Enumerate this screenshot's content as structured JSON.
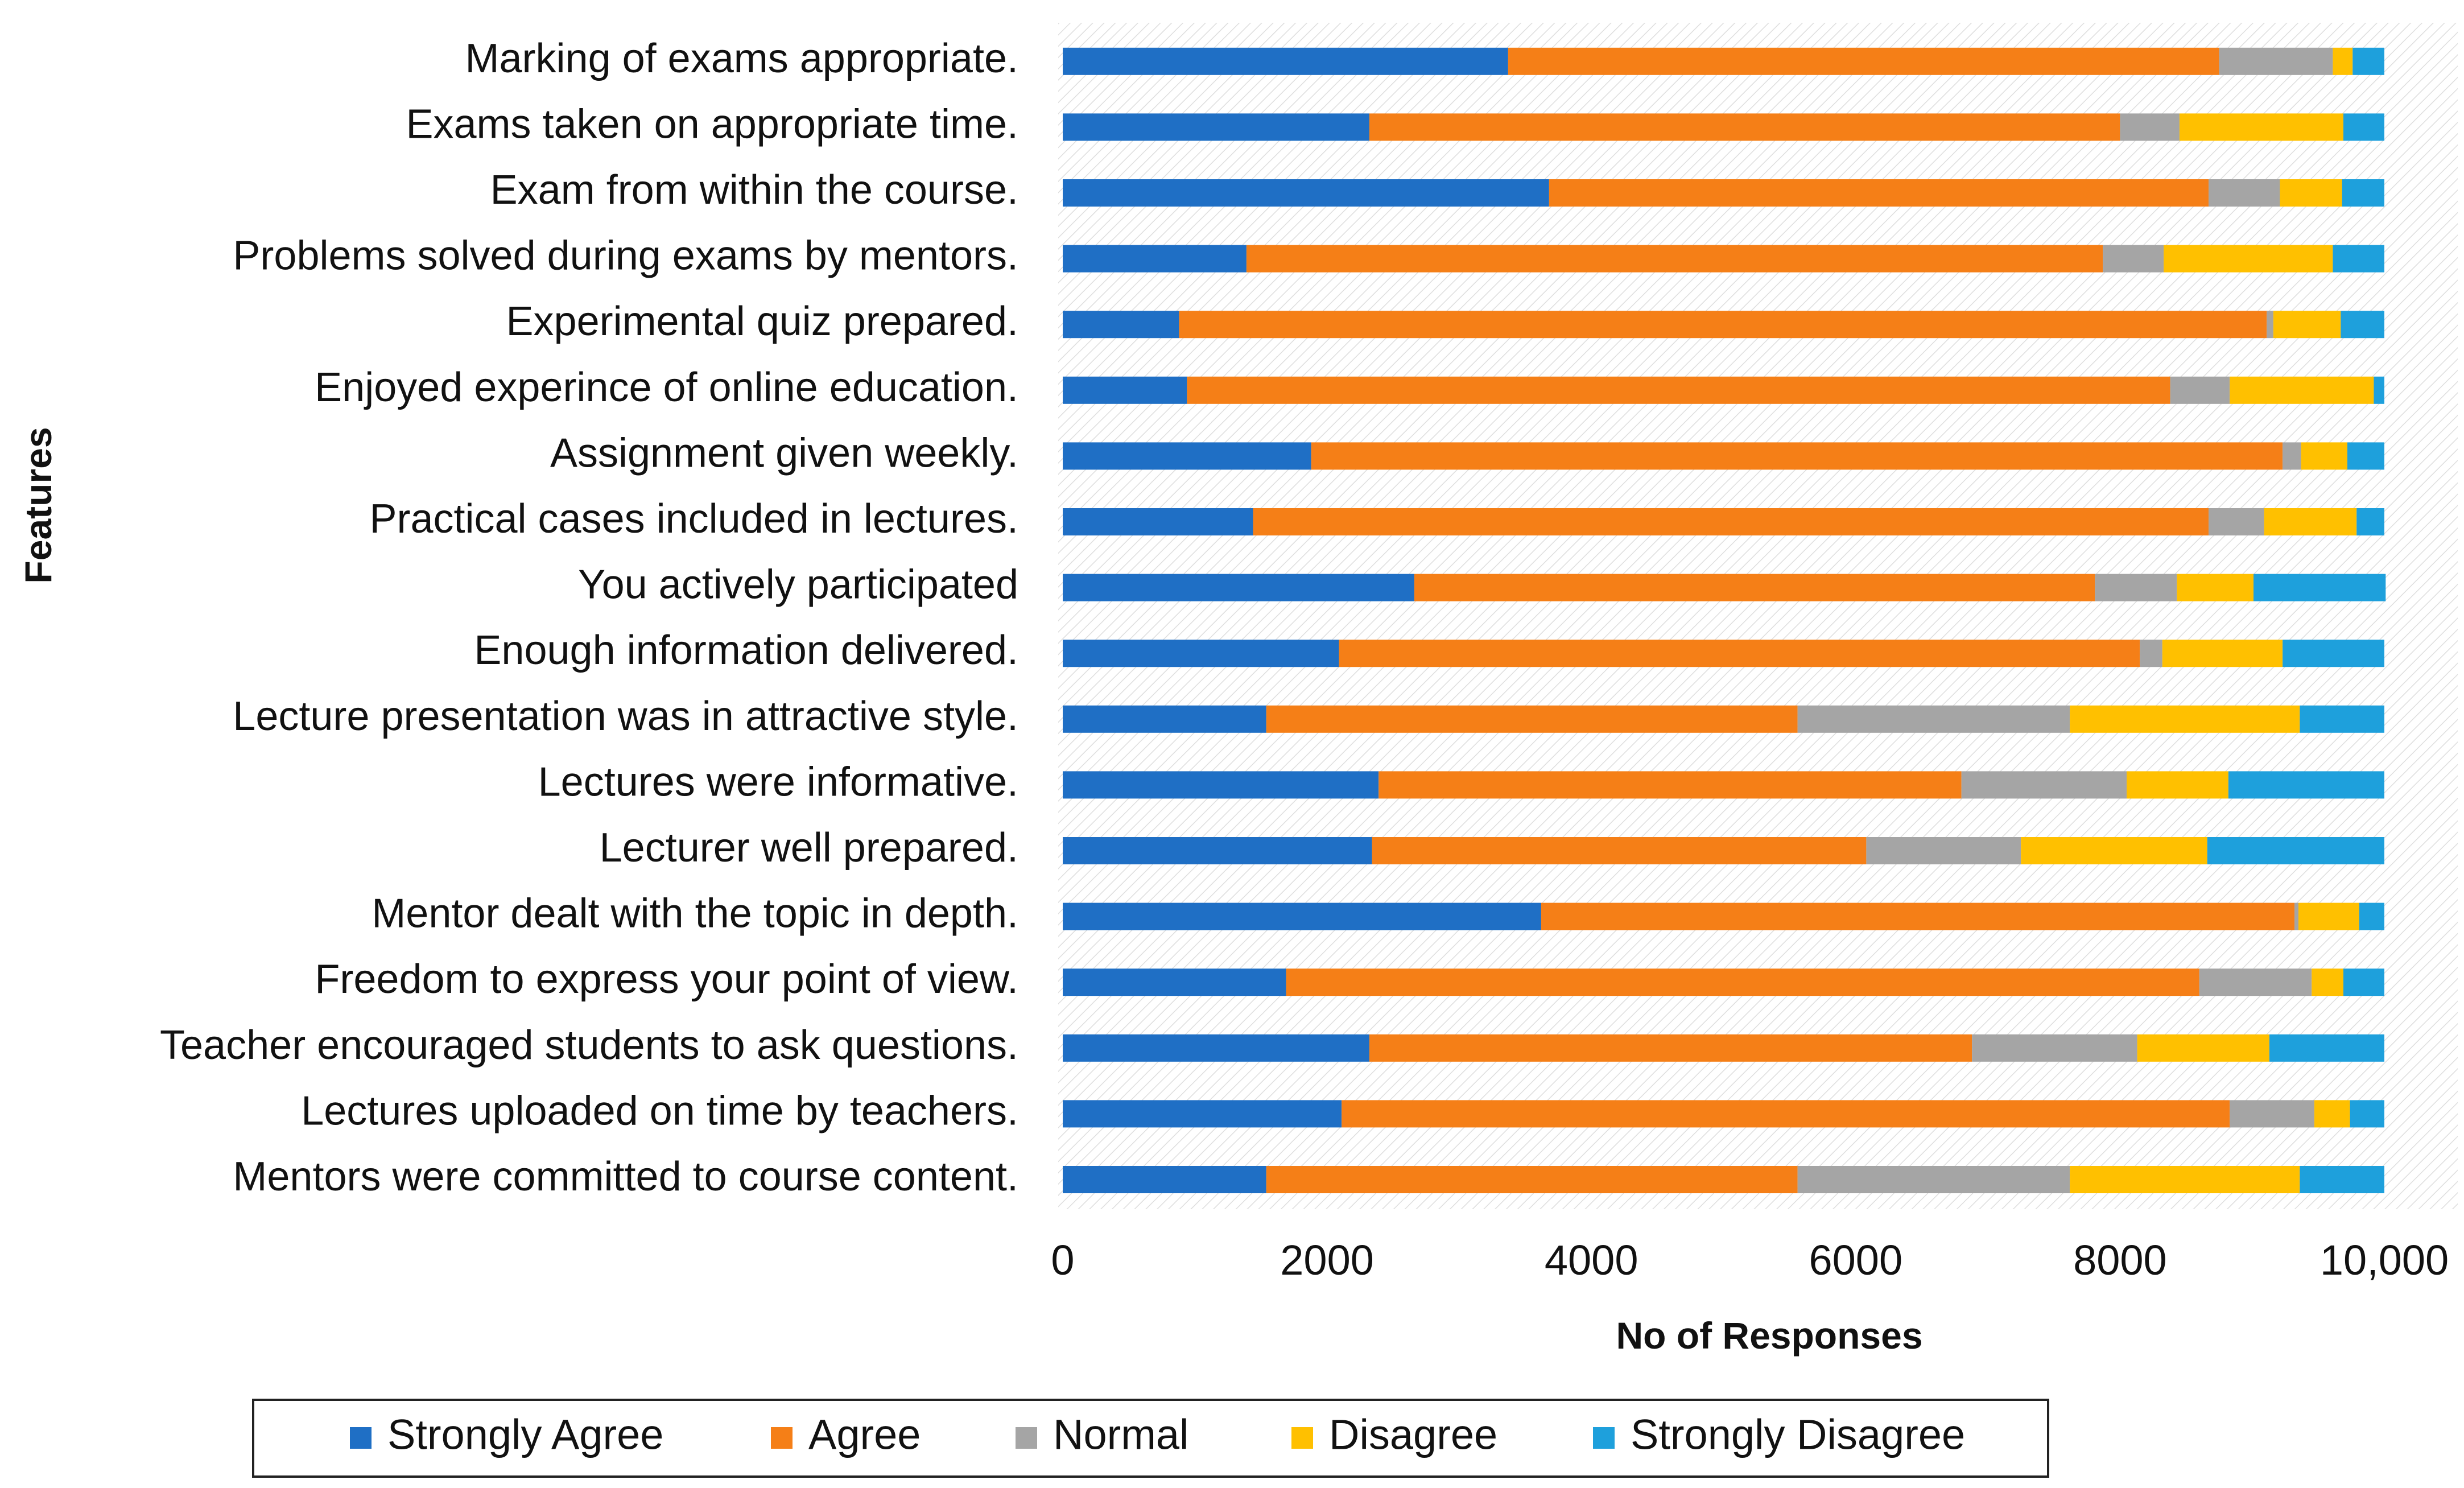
{
  "chart_data": {
    "type": "bar",
    "orientation": "horizontal",
    "stacked": true,
    "title": "",
    "xlabel": "No of Responses",
    "ylabel": "Features",
    "xlim": [
      0,
      10000
    ],
    "xticks": [
      0,
      2000,
      4000,
      6000,
      8000,
      10000
    ],
    "xtick_labels": [
      "0",
      "2000",
      "4000",
      "6000",
      "8000",
      "10,000"
    ],
    "grid": false,
    "legend_position": "bottom",
    "categories": [
      "Marking of exams appropriate.",
      "Exams taken on appropriate time.",
      "Exam from within the course.",
      "Problems solved during exams by mentors.",
      "Experimental quiz prepared.",
      "Enjoyed experince of online education.",
      "Assignment given weekly.",
      "Practical cases included in lectures.",
      "You actively participated",
      "Enough information delivered.",
      "Lecture presentation was in attractive style.",
      "Lectures were informative.",
      "Lecturer well prepared.",
      "Mentor dealt with the topic in depth.",
      "Freedom to express your point of view.",
      "Teacher encouraged students to ask questions.",
      "Lectures uploaded on time by teachers.",
      "Mentors were committed to course content."
    ],
    "series": [
      {
        "name": "Strongly Agree",
        "color": "#1f6fc5",
        "values": [
          3370,
          2320,
          3680,
          1390,
          880,
          940,
          1880,
          1440,
          2660,
          2090,
          1540,
          2390,
          2340,
          3620,
          1690,
          2320,
          2110,
          1540
        ]
      },
      {
        "name": "Agree",
        "color": "#f57f17",
        "values": [
          5380,
          5680,
          4990,
          6480,
          8230,
          7440,
          7350,
          7230,
          5150,
          6060,
          4020,
          4410,
          3740,
          5700,
          6910,
          4560,
          6720,
          4020
        ]
      },
      {
        "name": "Normal",
        "color": "#a5a5a5",
        "values": [
          860,
          450,
          540,
          460,
          50,
          450,
          140,
          420,
          620,
          170,
          2060,
          1250,
          1170,
          30,
          850,
          1250,
          640,
          2060
        ]
      },
      {
        "name": "Disagree",
        "color": "#ffc000",
        "values": [
          150,
          1240,
          470,
          1280,
          510,
          1090,
          350,
          700,
          580,
          910,
          1740,
          770,
          1410,
          460,
          240,
          1000,
          270,
          1740
        ]
      },
      {
        "name": "Strongly Disagree",
        "color": "#1ea0dc",
        "values": [
          240,
          310,
          320,
          390,
          330,
          80,
          280,
          210,
          1000,
          770,
          640,
          1180,
          1340,
          190,
          310,
          870,
          260,
          640
        ]
      }
    ]
  }
}
